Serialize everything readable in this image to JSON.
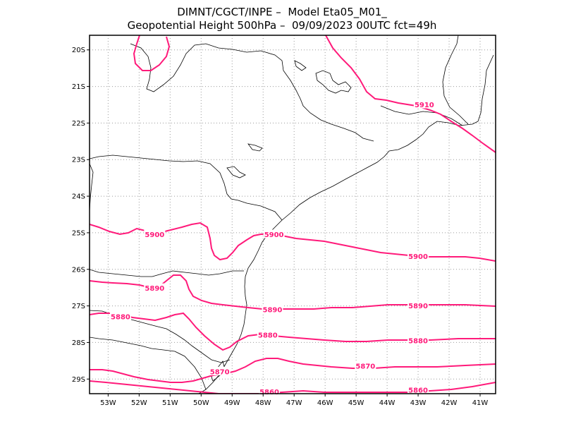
{
  "title": {
    "line1": "DIMNT/CGCT/INPE –  Model Eta05_M01_",
    "line2": "Geopotential Height 500hPa –  09/09/2023 00UTC fct=49h"
  },
  "map": {
    "lat_range": [
      -29.4,
      -19.6
    ],
    "lon_range": [
      -53.6,
      -40.5
    ],
    "lat_ticks": [
      "20S",
      "21S",
      "22S",
      "23S",
      "24S",
      "25S",
      "26S",
      "27S",
      "28S",
      "29S"
    ],
    "lon_ticks": [
      "53W",
      "52W",
      "51W",
      "50W",
      "49W",
      "48W",
      "47W",
      "46W",
      "45W",
      "44W",
      "43W",
      "42W",
      "41W"
    ],
    "contour_color": "#ff1a7a",
    "grid_color": "#9a9a9a"
  },
  "contours": [
    {
      "value": 5910,
      "labels": [
        {
          "text": "5910",
          "lon": -42.8,
          "lat": -21.5
        }
      ]
    },
    {
      "value": 5900,
      "labels": [
        {
          "text": "5900",
          "lon": -51.5,
          "lat": -25.05
        },
        {
          "text": "5900",
          "lon": -47.65,
          "lat": -25.05
        },
        {
          "text": "5900",
          "lon": -43.0,
          "lat": -25.65
        }
      ]
    },
    {
      "value": 5890,
      "labels": [
        {
          "text": "5890",
          "lon": -51.5,
          "lat": -26.52
        },
        {
          "text": "5890",
          "lon": -47.7,
          "lat": -27.1
        },
        {
          "text": "5890",
          "lon": -43.0,
          "lat": -27.0
        }
      ]
    },
    {
      "value": 5880,
      "labels": [
        {
          "text": "5880",
          "lon": -52.6,
          "lat": -27.3
        },
        {
          "text": "5880",
          "lon": -47.85,
          "lat": -27.8
        },
        {
          "text": "5880",
          "lon": -43.0,
          "lat": -27.95
        }
      ]
    },
    {
      "value": 5870,
      "labels": [
        {
          "text": "5870",
          "lon": -49.4,
          "lat": -28.8
        },
        {
          "text": "5870",
          "lon": -44.7,
          "lat": -28.65
        }
      ]
    },
    {
      "value": 5860,
      "labels": [
        {
          "text": "5860",
          "lon": -47.8,
          "lat": -29.35
        },
        {
          "text": "5860",
          "lon": -43.0,
          "lat": -29.3
        }
      ]
    }
  ]
}
